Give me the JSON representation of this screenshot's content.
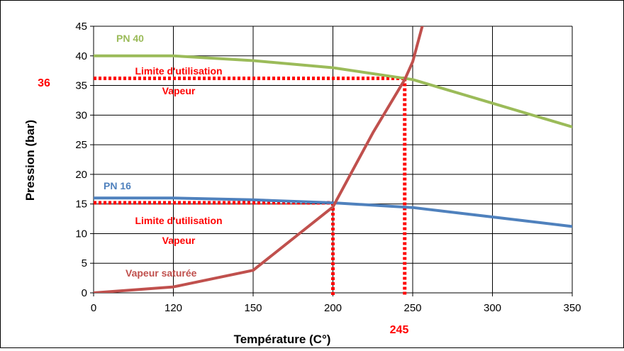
{
  "chart_data": {
    "type": "line",
    "xlabel": "Température (C°)",
    "ylabel": "Pression (bar)",
    "x_ticks": [
      "0",
      "120",
      "150",
      "200",
      "250",
      "300",
      "350"
    ],
    "y_ticks": [
      "0",
      "5",
      "10",
      "15",
      "20",
      "25",
      "30",
      "35",
      "40",
      "45"
    ],
    "ylim": [
      0,
      45
    ],
    "grid": true,
    "series": [
      {
        "name": "PN 40",
        "color": "#9bbb59",
        "points": [
          [
            0,
            40
          ],
          [
            120,
            40
          ],
          [
            150,
            39.2
          ],
          [
            200,
            38
          ],
          [
            250,
            36
          ],
          [
            300,
            32
          ],
          [
            350,
            28
          ]
        ]
      },
      {
        "name": "PN 16",
        "color": "#4f81bd",
        "points": [
          [
            0,
            16
          ],
          [
            120,
            16
          ],
          [
            150,
            15.7
          ],
          [
            200,
            15.2
          ],
          [
            250,
            14.4
          ],
          [
            300,
            12.8
          ],
          [
            350,
            11.2
          ]
        ]
      },
      {
        "name": "Vapeur saturée",
        "color": "#c0504d",
        "points": [
          [
            0,
            0
          ],
          [
            120,
            1
          ],
          [
            150,
            3.8
          ],
          [
            200,
            14.5
          ],
          [
            225,
            27
          ],
          [
            245,
            36
          ],
          [
            250,
            39
          ],
          [
            256,
            45
          ]
        ]
      }
    ],
    "annotations": {
      "limit_upper": {
        "line1": "Limite d'utilisation",
        "line2": "Vapeur",
        "y": 36.2,
        "x": 245,
        "y_label": "36",
        "x_label": "245"
      },
      "limit_lower": {
        "line1": "Limite d'utilisation",
        "line2": "Vapeur",
        "y": 15.2,
        "x": 200
      }
    },
    "colors": {
      "guide": "#ff0000",
      "grid": "#000000"
    }
  }
}
